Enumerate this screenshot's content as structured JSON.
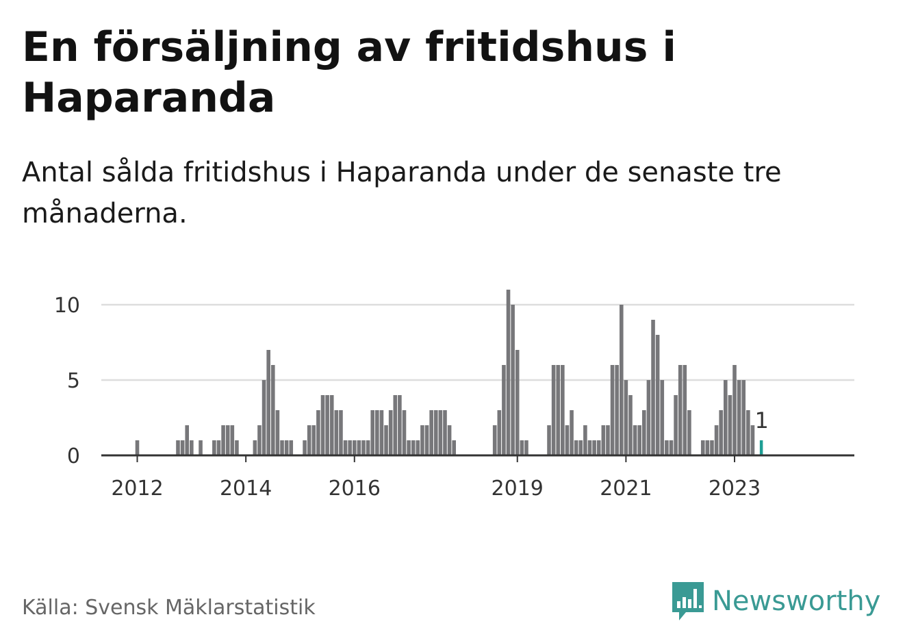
{
  "title": "En försäljning av fritidshus i Haparanda",
  "subtitle": "Antal sålda fritidshus i Haparanda under de senaste tre månaderna.",
  "source": "Källa: Svensk Mäklarstatistik",
  "brand": "Newsworthy",
  "colors": {
    "bar": "#77777a",
    "highlight": "#1e9e94",
    "grid": "#dddddd",
    "axis": "#333333",
    "brand": "#3a9a94"
  },
  "chart_data": {
    "type": "bar",
    "x_unit": "month",
    "start": "2012-01",
    "ylim": [
      0,
      11
    ],
    "yticks": [
      0,
      5,
      10
    ],
    "xticks": [
      {
        "label": "2012",
        "index": 0
      },
      {
        "label": "2014",
        "index": 24
      },
      {
        "label": "2016",
        "index": 48
      },
      {
        "label": "2019",
        "index": 84
      },
      {
        "label": "2021",
        "index": 108
      },
      {
        "label": "2023",
        "index": 132
      }
    ],
    "values": [
      1,
      0,
      0,
      0,
      0,
      0,
      0,
      0,
      0,
      1,
      1,
      2,
      1,
      0,
      1,
      0,
      0,
      1,
      1,
      2,
      2,
      2,
      1,
      0,
      0,
      0,
      1,
      2,
      5,
      7,
      6,
      3,
      1,
      1,
      1,
      0,
      0,
      1,
      2,
      2,
      3,
      4,
      4,
      4,
      3,
      3,
      1,
      1,
      1,
      1,
      1,
      1,
      3,
      3,
      3,
      2,
      3,
      4,
      4,
      3,
      1,
      1,
      1,
      2,
      2,
      3,
      3,
      3,
      3,
      2,
      1,
      0,
      0,
      0,
      0,
      0,
      0,
      0,
      0,
      2,
      3,
      6,
      11,
      10,
      7,
      1,
      1,
      0,
      0,
      0,
      0,
      2,
      6,
      6,
      6,
      2,
      3,
      1,
      1,
      2,
      1,
      1,
      1,
      2,
      2,
      6,
      6,
      10,
      5,
      4,
      2,
      2,
      3,
      5,
      9,
      8,
      5,
      1,
      1,
      4,
      6,
      6,
      3,
      0,
      0,
      1,
      1,
      1,
      2,
      3,
      5,
      4,
      6,
      5,
      5,
      3,
      2,
      0,
      1
    ],
    "highlight": {
      "value": 1,
      "label": "1"
    },
    "xlabel": "",
    "ylabel": "",
    "grid": true,
    "legend": "none"
  }
}
